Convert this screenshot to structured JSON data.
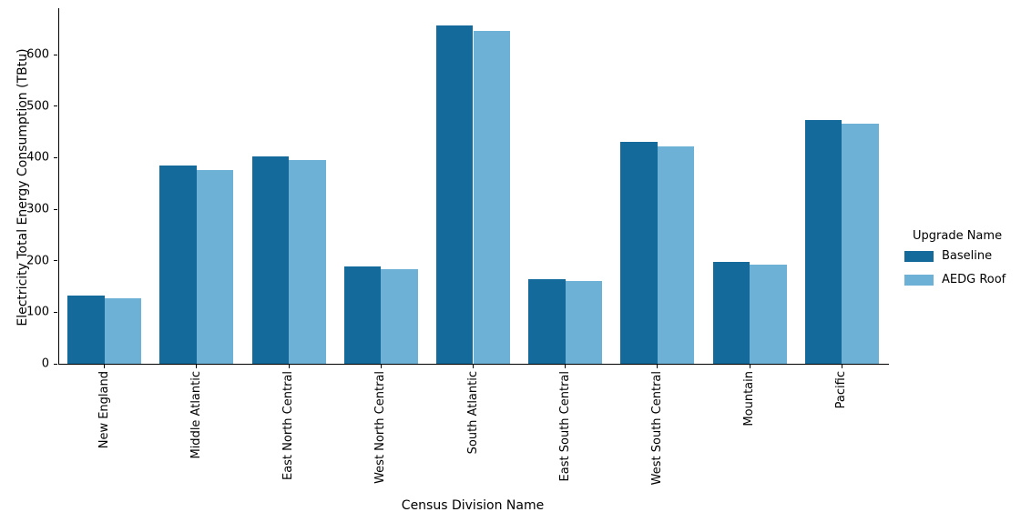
{
  "figure": {
    "title": "",
    "ylabel": "Electricity Total Energy Consumption (TBtu)",
    "xlabel": "Census Division Name",
    "legend": {
      "title": "Upgrade Name",
      "entries": [
        {
          "label": "Baseline",
          "color": "#156a9c"
        },
        {
          "label": "AEDG Roof",
          "color": "#6db1d7"
        }
      ]
    }
  },
  "chart_data": {
    "type": "bar",
    "categories": [
      "New England",
      "Middle Atlantic",
      "East North Central",
      "West North Central",
      "South Atlantic",
      "East South Central",
      "West South Central",
      "Mountain",
      "Pacific"
    ],
    "series": [
      {
        "name": "Baseline",
        "color": "#156a9c",
        "values": [
          132,
          384,
          403,
          189,
          656,
          164,
          430,
          197,
          473
        ]
      },
      {
        "name": "AEDG Roof",
        "color": "#6db1d7",
        "values": [
          127,
          376,
          395,
          184,
          646,
          160,
          422,
          192,
          466
        ]
      }
    ],
    "title": "",
    "xlabel": "Census Division Name",
    "ylabel": "Electricity Total Energy Consumption (TBtu)",
    "ylim": [
      0,
      690
    ],
    "yticks": [
      0,
      100,
      200,
      300,
      400,
      500,
      600
    ],
    "grid": false,
    "legend_position": "right-outside",
    "legend_title": "Upgrade Name"
  }
}
